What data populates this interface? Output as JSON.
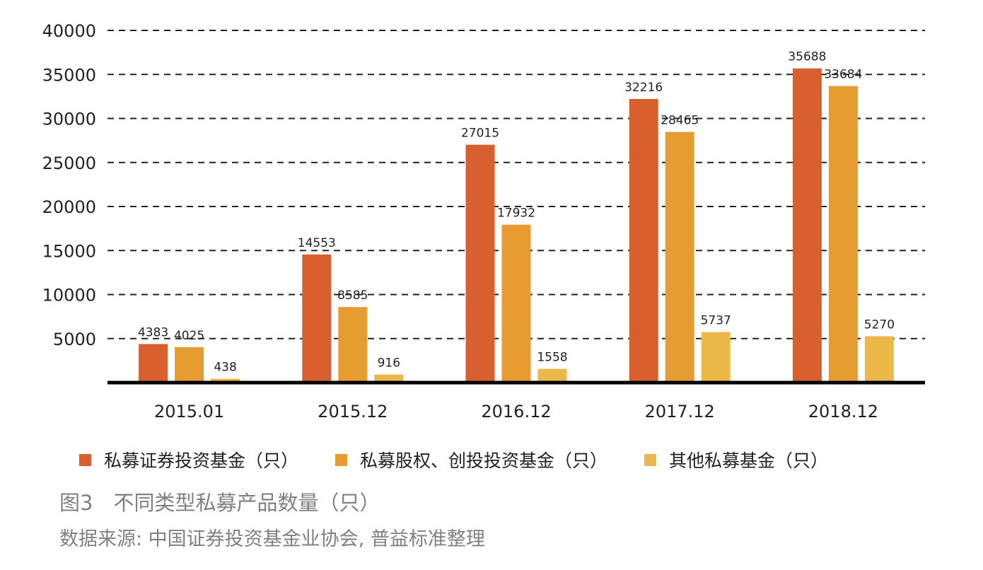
{
  "chart_data": {
    "type": "bar",
    "categories": [
      "2015.01",
      "2015.12",
      "2016.12",
      "2017.12",
      "2018.12"
    ],
    "series": [
      {
        "name": "私募证券投资基金（只）",
        "color": "#D95F2E",
        "values": [
          4383,
          14553,
          27015,
          32216,
          35688
        ]
      },
      {
        "name": "私募股权、创投投资基金（只）",
        "color": "#E69C30",
        "values": [
          4025,
          8585,
          17932,
          28465,
          33684
        ]
      },
      {
        "name": "其他私募基金（只）",
        "color": "#EDB84A",
        "values": [
          438,
          916,
          1558,
          5737,
          5270
        ]
      }
    ],
    "ylim": [
      0,
      40000
    ],
    "yticks": [
      "5000",
      "10000",
      "15000",
      "20000",
      "25000",
      "30000",
      "35000",
      "40000"
    ],
    "grid": "dashed horizontal",
    "legend_position": "bottom"
  },
  "caption": "图3　不同类型私募产品数量（只）",
  "source": "数据来源: 中国证券投资基金业协会, 普益标准整理"
}
